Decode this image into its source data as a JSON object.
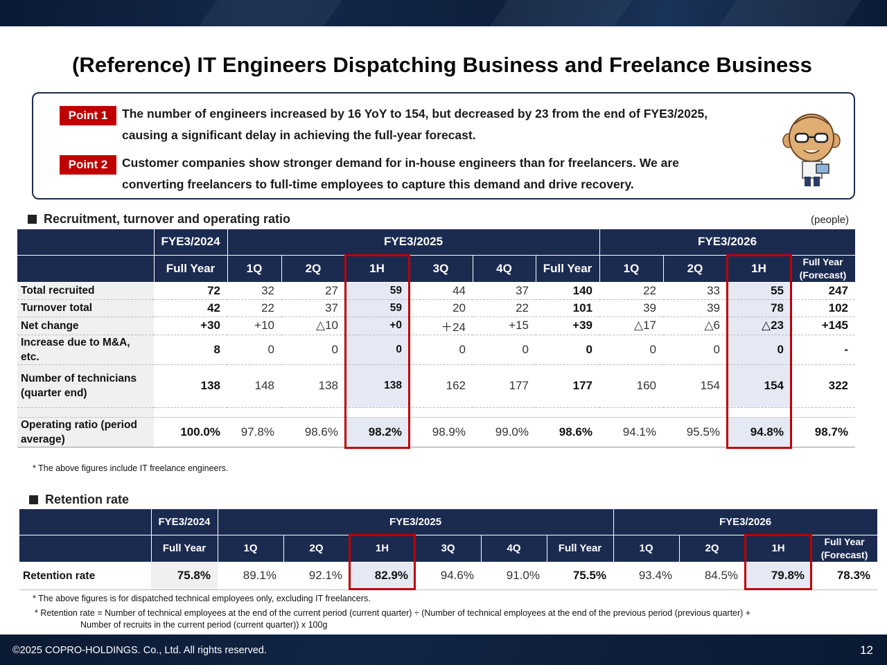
{
  "title": "(Reference) IT Engineers Dispatching Business and Freelance Business",
  "points": [
    {
      "badge": "Point 1",
      "line1": "The number of engineers increased by 16 YoY to 154, but decreased by 23 from the end of FYE3/2025,",
      "line2": "causing a significant delay in achieving the full-year forecast."
    },
    {
      "badge": "Point 2",
      "line1": "Customer companies show stronger demand for in-house engineers than for freelancers. We are",
      "line2": "converting freelancers to full-time employees to capture this demand and drive recovery."
    }
  ],
  "section1": {
    "label": "Recruitment, turnover and operating ratio",
    "unit": "(people)"
  },
  "section2": {
    "label": "Retention rate"
  },
  "headers": {
    "fy2024": "FYE3/2024",
    "fy2025": "FYE3/2025",
    "fy2026": "FYE3/2026",
    "full_year": "Full Year",
    "q1": "1Q",
    "q2": "2Q",
    "h1": "1H",
    "q3": "3Q",
    "q4": "4Q",
    "forecast_1": "Full Year",
    "forecast_2": "(Forecast)"
  },
  "table1": {
    "rows": [
      {
        "label1": "Total recruited",
        "label2": "",
        "cells": [
          "72",
          "32",
          "27",
          "59",
          "44",
          "37",
          "140",
          "22",
          "33",
          "55",
          "247"
        ]
      },
      {
        "label1": "Turnover total",
        "label2": "",
        "cells": [
          "42",
          "22",
          "37",
          "59",
          "20",
          "22",
          "101",
          "39",
          "39",
          "78",
          "102"
        ]
      },
      {
        "label1": "Net change",
        "label2": "",
        "cells": [
          "+30",
          "+10",
          "△10",
          "+0",
          "＋24",
          "+15",
          "+39",
          "△17",
          "△6",
          "△23",
          "+145"
        ]
      },
      {
        "label1": "Increase due to M&A,",
        "label2": "etc.",
        "cells": [
          "8",
          "0",
          "0",
          "0",
          "0",
          "0",
          "0",
          "0",
          "0",
          "0",
          "-"
        ]
      },
      {
        "label1": "Number of technicians",
        "label2": "(quarter end)",
        "cells": [
          "138",
          "148",
          "138",
          "138",
          "162",
          "177",
          "177",
          "160",
          "154",
          "154",
          "322"
        ]
      },
      {
        "label1": "Operating ratio (period",
        "label2": "average)",
        "cells": [
          "100.0%",
          "97.8%",
          "98.6%",
          "98.2%",
          "98.9%",
          "99.0%",
          "98.6%",
          "94.1%",
          "95.5%",
          "94.8%",
          "98.7%"
        ]
      }
    ]
  },
  "table2": {
    "label": "Retention rate",
    "cells": [
      "75.8%",
      "89.1%",
      "92.1%",
      "82.9%",
      "94.6%",
      "91.0%",
      "75.5%",
      "93.4%",
      "84.5%",
      "79.8%",
      "78.3%"
    ]
  },
  "notes": {
    "n1": "* The above figures include IT freelance engineers.",
    "n2": "* The above figures is for dispatched technical employees only, excluding IT freelancers.",
    "n3a": "* Retention rate = Number of technical employees at the end of the current period (current quarter) ÷ (Number of technical employees at the end of the previous period (previous quarter) +",
    "n3b": "Number of recruits in the current period (current quarter)) x 100g"
  },
  "footer": {
    "copyright": "©2025 COPRO-HOLDINGS. Co., Ltd. All rights reserved.",
    "page": "12"
  }
}
